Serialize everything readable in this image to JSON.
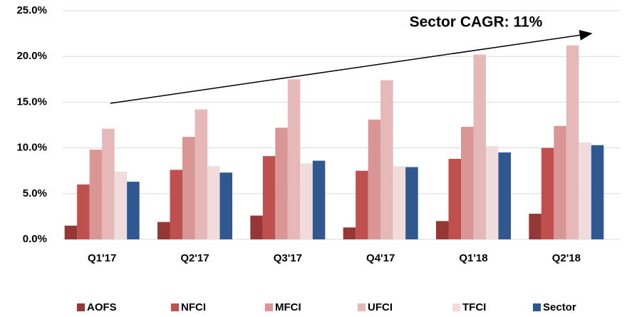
{
  "chart_data": {
    "type": "bar",
    "annotation": "Sector CAGR: 11%",
    "categories": [
      "Q1'17",
      "Q2'17",
      "Q3'17",
      "Q4'17",
      "Q1'18",
      "Q2'18"
    ],
    "series": [
      {
        "name": "AOFS",
        "color": "#953735",
        "values": [
          1.5,
          1.9,
          2.6,
          1.3,
          2.0,
          2.8
        ]
      },
      {
        "name": "NFCI",
        "color": "#c0504d",
        "values": [
          6.0,
          7.6,
          9.1,
          7.5,
          8.8,
          10.0
        ]
      },
      {
        "name": "MFCI",
        "color": "#d99694",
        "values": [
          9.8,
          11.2,
          12.2,
          13.1,
          12.3,
          12.4
        ]
      },
      {
        "name": "UFCI",
        "color": "#e6b9b8",
        "values": [
          12.1,
          14.2,
          17.5,
          17.4,
          20.2,
          21.2
        ]
      },
      {
        "name": "TFCI",
        "color": "#f2dcdb",
        "values": [
          7.4,
          8.0,
          8.3,
          8.0,
          10.2,
          10.6
        ]
      },
      {
        "name": "Sector",
        "color": "#2f5890",
        "values": [
          6.3,
          7.3,
          8.6,
          7.9,
          9.5,
          10.3
        ]
      }
    ],
    "ylim": [
      0,
      25
    ],
    "yticks": [
      {
        "value": 0,
        "label": "0.0%"
      },
      {
        "value": 5,
        "label": "5.0%"
      },
      {
        "value": 10,
        "label": "10.0%"
      },
      {
        "value": 15,
        "label": "15.0%"
      },
      {
        "value": 20,
        "label": "20.0%"
      },
      {
        "value": 25,
        "label": "25.0%"
      }
    ],
    "grid": true,
    "legend": "bottom"
  }
}
